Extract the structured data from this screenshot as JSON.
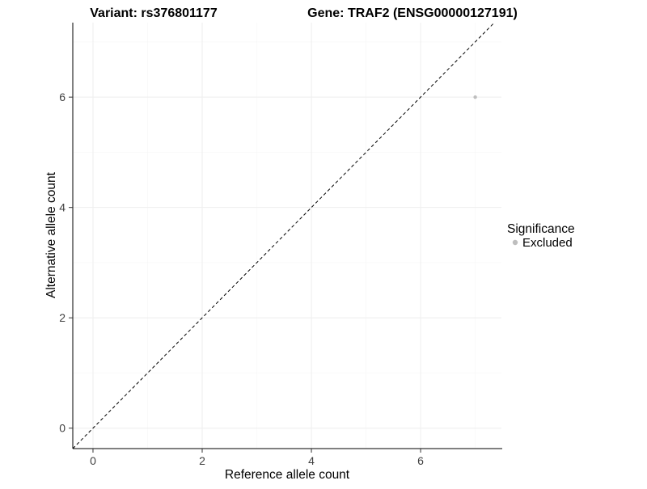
{
  "chart_data": {
    "type": "scatter",
    "titles": {
      "left": "Variant: rs376801177",
      "right": "Gene: TRAF2 (ENSG00000127191)"
    },
    "xlabel": "Reference allele count",
    "ylabel": "Alternative allele count",
    "xlim": [
      -0.37,
      7.48
    ],
    "ylim": [
      -0.37,
      7.35
    ],
    "xticks": [
      0,
      2,
      4,
      6
    ],
    "yticks": [
      0,
      2,
      4,
      6
    ],
    "grid": true,
    "identity_line": {
      "style": "dashed",
      "color": "#000000",
      "equation": "y = x"
    },
    "series": [
      {
        "name": "Excluded",
        "color": "#bebebe",
        "point_radius": 2.2,
        "points": [
          [
            7,
            6
          ]
        ]
      }
    ],
    "legend": {
      "position": "right",
      "title": "Significance",
      "items": [
        {
          "label": "Excluded",
          "color": "#bebebe"
        }
      ]
    }
  }
}
